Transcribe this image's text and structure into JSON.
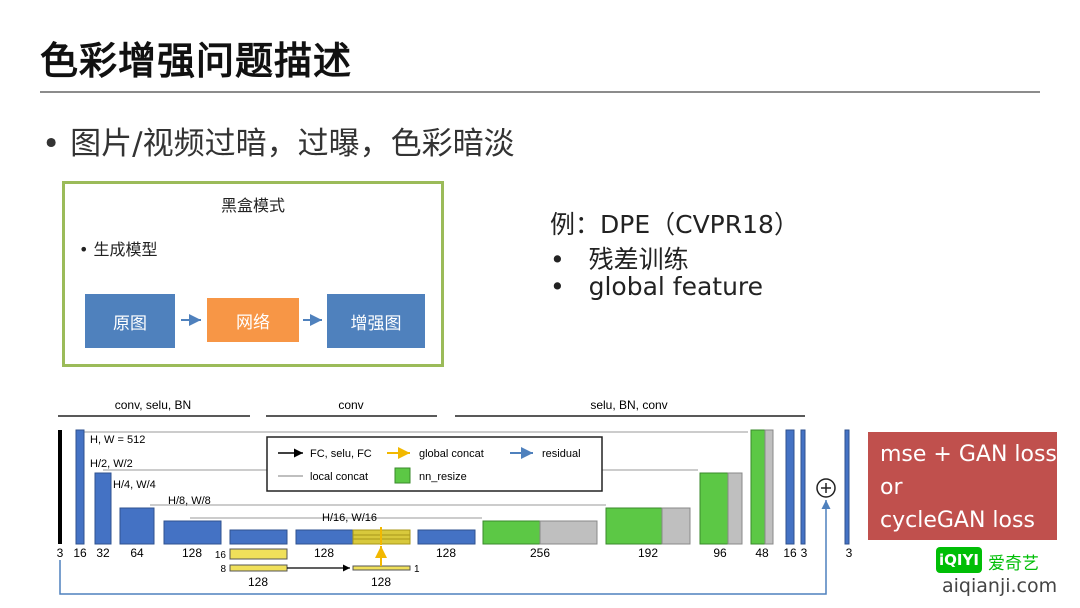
{
  "title": "色彩增强问题描述",
  "main_bullet": "图片/视频过暗，过曝，色彩暗淡",
  "blackbox": {
    "title": "黑盒模式",
    "bullet": "• 生成模型",
    "flow": [
      "原图",
      "网络",
      "增强图"
    ]
  },
  "example": {
    "heading": "例：DPE（CVPR18）",
    "items": [
      "残差训练",
      "global feature"
    ]
  },
  "architecture": {
    "section_labels": [
      "conv, selu, BN",
      "conv",
      "selu, BN, conv"
    ],
    "resolution_labels": [
      "H, W = 512",
      "H/2, W/2",
      "H/4, W/4",
      "H/8, W/8",
      "H/16, W/16"
    ],
    "channel_labels": [
      "3",
      "16",
      "32",
      "64",
      "128",
      "128",
      "128",
      "256",
      "192",
      "96",
      "48",
      "16",
      "3",
      "3"
    ],
    "global_branch_labels": [
      "16",
      "8",
      "128",
      "128",
      "1"
    ],
    "legend": {
      "items": [
        "FC, selu, FC",
        "global concat",
        "residual",
        "local concat",
        "nn_resize"
      ]
    },
    "add_symbol": "⊕"
  },
  "loss_box": [
    "mse + GAN loss",
    "or",
    "cycleGAN loss"
  ],
  "watermark": {
    "logo": "iQIYI",
    "name": "爱奇艺",
    "url": "aiqianji.com"
  },
  "colors": {
    "blue": "#4472c4",
    "green": "#5cc845",
    "gray": "#bfbfbf",
    "orange": "#f79646",
    "yellow": "#f0e05a",
    "loss_red": "#c0504d",
    "box_border": "#9bbb59"
  }
}
